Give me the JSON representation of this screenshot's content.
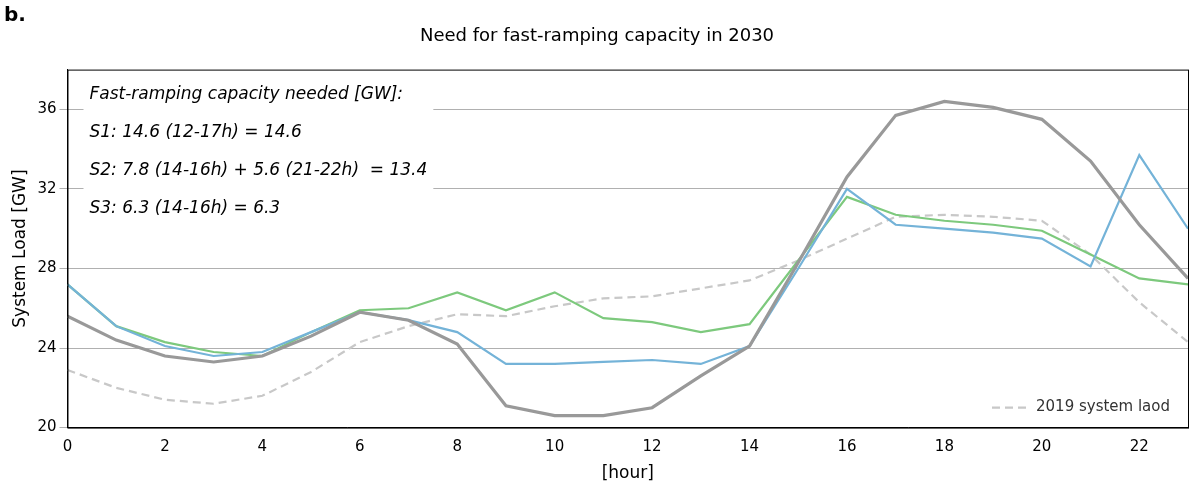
{
  "chart_data": {
    "type": "line",
    "panel_label": "b.",
    "title": "Need for fast-ramping capacity in 2030",
    "x_label": "[hour]",
    "y_label": "System Load [GW]",
    "annotations": [
      "Fast-ramping capacity needed [GW]:",
      "S1: 14.6 (12-17h) = 14.6",
      "S2: 7.8 (14-16h) + 5.6 (21-22h)  = 13.4",
      "S3: 6.3 (14-16h) = 6.3"
    ],
    "x": [
      0,
      1,
      2,
      3,
      4,
      5,
      6,
      7,
      8,
      9,
      10,
      11,
      12,
      13,
      14,
      15,
      16,
      17,
      18,
      19,
      20,
      21,
      22,
      23
    ],
    "series": [
      {
        "color": "#999999",
        "line_style": "solid",
        "values": [
          25.6,
          24.4,
          23.6,
          23.3,
          23.6,
          24.6,
          25.8,
          25.4,
          24.2,
          21.1,
          20.6,
          20.6,
          21.0,
          22.6,
          24.1,
          28.3,
          32.6,
          35.7,
          36.4,
          36.1,
          35.5,
          33.4,
          30.2,
          27.5
        ]
      },
      {
        "color": "#74b3d8",
        "line_style": "solid",
        "values": [
          27.2,
          25.1,
          24.1,
          23.6,
          23.8,
          24.8,
          25.8,
          25.4,
          24.8,
          23.2,
          23.2,
          23.3,
          23.4,
          23.2,
          24.1,
          28.0,
          32.0,
          30.2,
          30.0,
          29.8,
          29.5,
          28.1,
          33.7,
          30.0
        ]
      },
      {
        "color": "#7dc97d",
        "line_style": "solid",
        "values": [
          27.2,
          25.1,
          24.3,
          23.8,
          23.6,
          24.8,
          25.9,
          26.0,
          26.8,
          25.9,
          26.8,
          25.5,
          25.3,
          24.8,
          25.2,
          28.4,
          31.6,
          30.7,
          30.4,
          30.2,
          29.9,
          28.7,
          27.5,
          27.2
        ]
      },
      {
        "name": "2019 system laod",
        "color": "#c8c8c8",
        "line_style": "dashed",
        "values": [
          22.9,
          22.0,
          21.4,
          21.2,
          21.6,
          22.8,
          24.3,
          25.1,
          25.7,
          25.6,
          26.1,
          26.5,
          26.6,
          27.0,
          27.4,
          28.4,
          29.5,
          30.6,
          30.7,
          30.6,
          30.4,
          28.7,
          26.3,
          24.3
        ]
      }
    ],
    "xlim": [
      0,
      23
    ],
    "xticks": [
      0,
      2,
      4,
      6,
      8,
      10,
      12,
      14,
      16,
      18,
      20,
      22
    ],
    "ylim": [
      20,
      38
    ],
    "yticks": [
      20,
      24,
      28,
      32,
      36
    ],
    "grid": true,
    "legend": "lower right"
  }
}
